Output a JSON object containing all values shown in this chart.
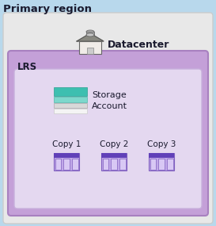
{
  "title": "Primary region",
  "bg_color": "#b8d8ec",
  "datacenter_label": "Datacenter",
  "lrs_label": "LRS",
  "storage_label": "Storage\nAccount",
  "copy_labels": [
    "Copy 1",
    "Copy 2",
    "Copy 3"
  ],
  "outer_box_facecolor": "#e8e8e8",
  "outer_box_edgecolor": "#cccccc",
  "lrs_box_facecolor": "#c4a0d8",
  "lrs_box_edgecolor": "#a880c0",
  "inner_box_facecolor": "#e4d8f0",
  "inner_box_edgecolor": "#c8b0dc",
  "storage_teal1": "#3dbfb0",
  "storage_teal2": "#7dd8cc",
  "storage_gray": "#d8d8d8",
  "storage_white": "#f4f4f4",
  "copy_top_color": "#6040b8",
  "copy_body_color": "#c0a8e8",
  "copy_cell_color": "#d8c8f4",
  "copy_divider_color": "#8060c0",
  "title_fontsize": 9.5,
  "datacenter_fontsize": 9,
  "lrs_fontsize": 8.5,
  "label_fontsize": 7.5,
  "storage_text_fontsize": 8
}
